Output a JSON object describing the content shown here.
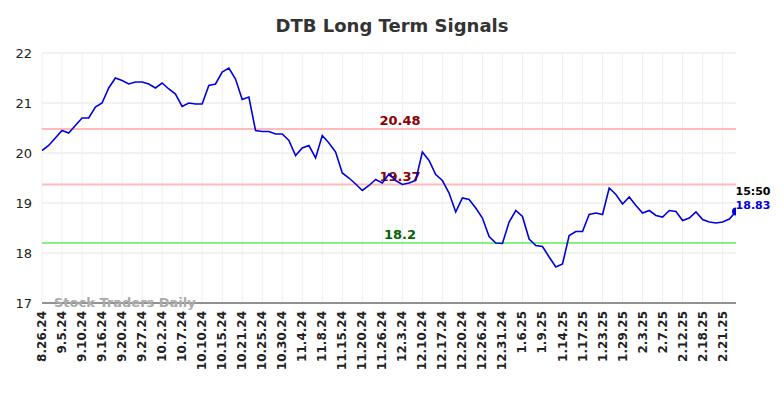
{
  "chart_data": {
    "type": "line",
    "title": "DTB Long Term Signals",
    "categories": [
      "8.26.24",
      null,
      null,
      "9.5.24",
      null,
      null,
      "9.10.24",
      null,
      null,
      "9.16.24",
      null,
      null,
      "9.20.24",
      null,
      null,
      "9.27.24",
      null,
      null,
      "10.2.24",
      null,
      null,
      "10.7.24",
      null,
      null,
      "10.10.24",
      null,
      null,
      "10.15.24",
      null,
      null,
      "10.21.24",
      null,
      null,
      "10.25.24",
      null,
      null,
      "10.30.24",
      null,
      null,
      "11.4.24",
      null,
      null,
      "11.8.24",
      null,
      null,
      "11.15.24",
      null,
      null,
      "11.20.24",
      null,
      null,
      "11.26.24",
      null,
      null,
      "12.3.24",
      null,
      null,
      "12.10.24",
      null,
      null,
      "12.17.24",
      null,
      null,
      "12.20.24",
      null,
      null,
      "12.26.24",
      null,
      null,
      "12.31.24",
      null,
      null,
      "1.6.25",
      null,
      null,
      "1.9.25",
      null,
      null,
      "1.14.25",
      null,
      null,
      "1.17.25",
      null,
      null,
      "1.23.25",
      null,
      null,
      "1.29.25",
      null,
      null,
      "2.3.25",
      null,
      null,
      "2.7.25",
      null,
      null,
      "2.12.25",
      null,
      null,
      "2.18.25",
      null,
      null,
      "2.21.25",
      null,
      null
    ],
    "values": [
      20.05,
      20.15,
      20.3,
      20.45,
      20.4,
      20.55,
      20.7,
      20.7,
      20.92,
      21.0,
      21.3,
      21.5,
      21.45,
      21.38,
      21.42,
      21.42,
      21.38,
      21.3,
      21.4,
      21.28,
      21.18,
      20.93,
      21.0,
      20.98,
      20.98,
      21.35,
      21.38,
      21.62,
      21.7,
      21.48,
      21.07,
      21.12,
      20.45,
      20.43,
      20.43,
      20.38,
      20.38,
      20.25,
      19.95,
      20.1,
      20.15,
      19.9,
      20.35,
      20.2,
      20.02,
      19.6,
      19.5,
      19.38,
      19.25,
      19.35,
      19.47,
      19.4,
      19.58,
      19.45,
      19.37,
      19.4,
      19.45,
      20.02,
      19.85,
      19.57,
      19.45,
      19.2,
      18.82,
      19.1,
      19.07,
      18.9,
      18.7,
      18.33,
      18.2,
      18.19,
      18.62,
      18.85,
      18.73,
      18.28,
      18.15,
      18.13,
      17.92,
      17.72,
      17.78,
      18.35,
      18.43,
      18.43,
      18.77,
      18.8,
      18.77,
      19.3,
      19.17,
      18.98,
      19.12,
      18.95,
      18.8,
      18.85,
      18.75,
      18.72,
      18.85,
      18.83,
      18.65,
      18.7,
      18.82,
      18.67,
      18.62,
      18.6,
      18.62,
      18.68,
      18.83
    ],
    "color": "#0000dd",
    "ylim": [
      17,
      22
    ],
    "yticks": [
      17,
      18,
      19,
      20,
      21,
      22
    ],
    "grid": true,
    "levels": [
      {
        "value": 20.48,
        "color": "#ffbbbb"
      },
      {
        "value": 19.37,
        "color": "#ffbbbb"
      },
      {
        "value": 18.2,
        "color": "#88ee88"
      }
    ],
    "last_time": "15:50",
    "watermark": "Stock Traders Daily"
  }
}
